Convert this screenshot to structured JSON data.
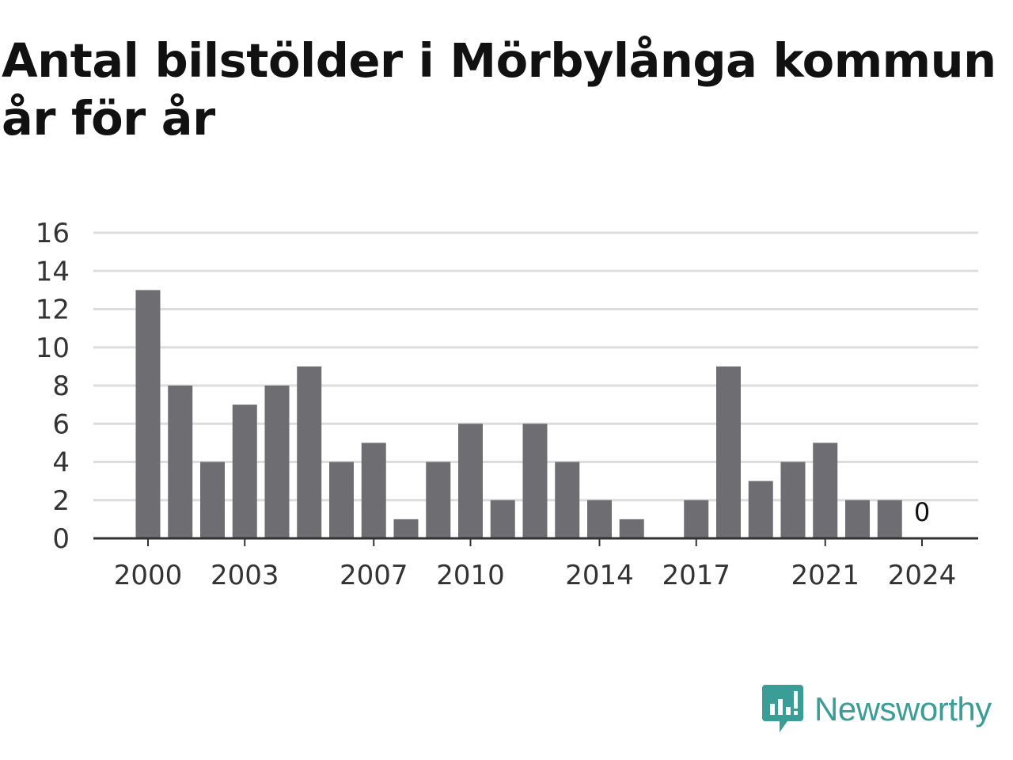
{
  "title": "Antal bilstölder i Mörbylånga kommun år för år",
  "brand": {
    "name": "Newsworthy",
    "color": "#3a9e97",
    "icon": "newsworthy-logo-icon"
  },
  "colors": {
    "bar": "#6e6d72",
    "grid": "#dddddd",
    "axis": "#333333"
  },
  "chart_data": {
    "type": "bar",
    "title": "Antal bilstölder i Mörbylånga kommun år för år",
    "xlabel": "",
    "ylabel": "",
    "categories": [
      "2000",
      "2001",
      "2002",
      "2003",
      "2004",
      "2005",
      "2006",
      "2007",
      "2008",
      "2009",
      "2010",
      "2011",
      "2012",
      "2013",
      "2014",
      "2015",
      "2016",
      "2017",
      "2018",
      "2019",
      "2020",
      "2021",
      "2022",
      "2023",
      "2024"
    ],
    "values": [
      13,
      8,
      4,
      7,
      8,
      9,
      4,
      5,
      1,
      4,
      6,
      2,
      6,
      4,
      2,
      1,
      0,
      2,
      9,
      3,
      4,
      5,
      2,
      2,
      0
    ],
    "x_tick_labels": [
      "2000",
      "2003",
      "2007",
      "2010",
      "2014",
      "2017",
      "2021",
      "2024"
    ],
    "y_ticks": [
      0,
      2,
      4,
      6,
      8,
      10,
      12,
      14,
      16
    ],
    "ylim": [
      0,
      16
    ],
    "grid": true,
    "annotations": [
      {
        "category": "2024",
        "text": "0"
      }
    ]
  }
}
